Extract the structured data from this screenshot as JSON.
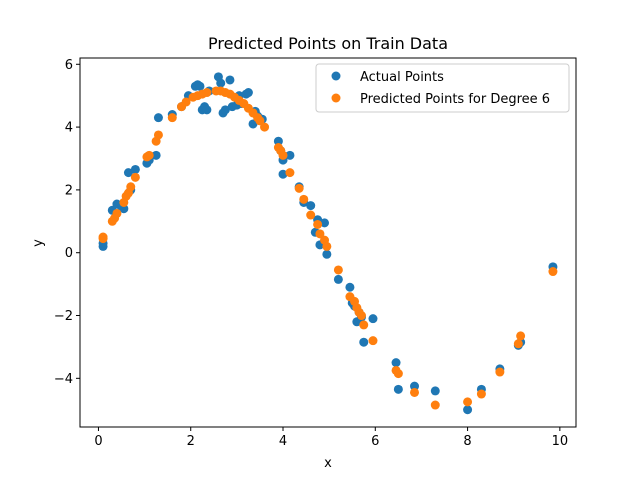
{
  "chart_data": {
    "type": "scatter",
    "title": "Predicted Points on Train Data",
    "xlabel": "x",
    "ylabel": "y",
    "xlim": [
      -0.4,
      10.35
    ],
    "ylim": [
      -5.55,
      6.2
    ],
    "xticks": [
      0,
      2,
      4,
      6,
      8,
      10
    ],
    "yticks": [
      -4,
      -2,
      0,
      2,
      4,
      6
    ],
    "xtick_labels": [
      "0",
      "2",
      "4",
      "6",
      "8",
      "10"
    ],
    "ytick_labels": [
      "−4",
      "−2",
      "0",
      "2",
      "4",
      "6"
    ],
    "grid": false,
    "legend_position": "top-right",
    "series": [
      {
        "name": "Actual Points",
        "color": "#1f77b4",
        "points": [
          [
            0.1,
            0.2
          ],
          [
            0.1,
            0.3
          ],
          [
            0.3,
            1.35
          ],
          [
            0.4,
            1.55
          ],
          [
            0.5,
            1.45
          ],
          [
            0.55,
            1.4
          ],
          [
            0.65,
            2.55
          ],
          [
            0.7,
            2.0
          ],
          [
            0.8,
            2.65
          ],
          [
            1.05,
            2.85
          ],
          [
            1.1,
            2.95
          ],
          [
            1.25,
            3.1
          ],
          [
            1.3,
            4.3
          ],
          [
            1.6,
            4.4
          ],
          [
            1.8,
            4.65
          ],
          [
            1.95,
            5.0
          ],
          [
            2.1,
            5.3
          ],
          [
            2.15,
            5.35
          ],
          [
            2.2,
            5.3
          ],
          [
            2.25,
            4.55
          ],
          [
            2.3,
            4.65
          ],
          [
            2.35,
            4.55
          ],
          [
            2.4,
            5.15
          ],
          [
            2.6,
            5.6
          ],
          [
            2.65,
            5.4
          ],
          [
            2.7,
            4.45
          ],
          [
            2.75,
            4.55
          ],
          [
            2.85,
            5.5
          ],
          [
            2.9,
            4.65
          ],
          [
            3.0,
            4.7
          ],
          [
            3.05,
            5.0
          ],
          [
            3.1,
            4.75
          ],
          [
            3.2,
            5.05
          ],
          [
            3.25,
            5.1
          ],
          [
            3.35,
            4.1
          ],
          [
            3.4,
            4.5
          ],
          [
            3.45,
            4.35
          ],
          [
            3.55,
            4.25
          ],
          [
            3.9,
            3.55
          ],
          [
            3.95,
            3.25
          ],
          [
            4.0,
            2.95
          ],
          [
            4.0,
            2.5
          ],
          [
            4.15,
            3.1
          ],
          [
            4.35,
            2.1
          ],
          [
            4.45,
            1.6
          ],
          [
            4.6,
            1.5
          ],
          [
            4.7,
            0.65
          ],
          [
            4.75,
            1.05
          ],
          [
            4.8,
            0.25
          ],
          [
            4.9,
            0.95
          ],
          [
            4.95,
            -0.05
          ],
          [
            5.2,
            -0.85
          ],
          [
            5.45,
            -1.1
          ],
          [
            5.5,
            -1.6
          ],
          [
            5.55,
            -1.7
          ],
          [
            5.6,
            -2.2
          ],
          [
            5.65,
            -1.9
          ],
          [
            5.7,
            -2.05
          ],
          [
            5.75,
            -2.85
          ],
          [
            5.95,
            -2.1
          ],
          [
            6.45,
            -3.5
          ],
          [
            6.5,
            -4.35
          ],
          [
            6.85,
            -4.25
          ],
          [
            7.3,
            -4.4
          ],
          [
            8.0,
            -5.0
          ],
          [
            8.3,
            -4.35
          ],
          [
            8.7,
            -3.7
          ],
          [
            9.1,
            -2.95
          ],
          [
            9.15,
            -2.85
          ],
          [
            9.85,
            -0.45
          ]
        ]
      },
      {
        "name": "Predicted Points for Degree 6",
        "color": "#ff7f0e",
        "points": [
          [
            0.1,
            0.45
          ],
          [
            0.1,
            0.5
          ],
          [
            0.3,
            1.0
          ],
          [
            0.35,
            1.1
          ],
          [
            0.4,
            1.25
          ],
          [
            0.55,
            1.6
          ],
          [
            0.6,
            1.8
          ],
          [
            0.65,
            1.9
          ],
          [
            0.7,
            2.1
          ],
          [
            0.8,
            2.4
          ],
          [
            1.05,
            3.05
          ],
          [
            1.1,
            3.1
          ],
          [
            1.25,
            3.55
          ],
          [
            1.3,
            3.75
          ],
          [
            1.6,
            4.3
          ],
          [
            1.8,
            4.65
          ],
          [
            1.9,
            4.8
          ],
          [
            2.05,
            4.95
          ],
          [
            2.15,
            5.0
          ],
          [
            2.25,
            5.05
          ],
          [
            2.35,
            5.1
          ],
          [
            2.55,
            5.15
          ],
          [
            2.65,
            5.15
          ],
          [
            2.75,
            5.1
          ],
          [
            2.85,
            5.05
          ],
          [
            2.95,
            4.95
          ],
          [
            3.05,
            4.85
          ],
          [
            3.15,
            4.75
          ],
          [
            3.25,
            4.6
          ],
          [
            3.35,
            4.45
          ],
          [
            3.45,
            4.3
          ],
          [
            3.5,
            4.2
          ],
          [
            3.6,
            4.0
          ],
          [
            3.9,
            3.35
          ],
          [
            3.95,
            3.25
          ],
          [
            4.0,
            3.1
          ],
          [
            4.15,
            2.55
          ],
          [
            4.35,
            2.05
          ],
          [
            4.45,
            1.7
          ],
          [
            4.6,
            1.2
          ],
          [
            4.75,
            0.9
          ],
          [
            4.8,
            0.6
          ],
          [
            4.9,
            0.4
          ],
          [
            4.95,
            0.2
          ],
          [
            5.2,
            -0.55
          ],
          [
            5.45,
            -1.4
          ],
          [
            5.55,
            -1.55
          ],
          [
            5.6,
            -1.75
          ],
          [
            5.65,
            -1.9
          ],
          [
            5.7,
            -2.0
          ],
          [
            5.75,
            -2.3
          ],
          [
            5.95,
            -2.8
          ],
          [
            6.45,
            -3.75
          ],
          [
            6.5,
            -3.85
          ],
          [
            6.85,
            -4.45
          ],
          [
            7.3,
            -4.85
          ],
          [
            8.0,
            -4.75
          ],
          [
            8.3,
            -4.5
          ],
          [
            8.7,
            -3.8
          ],
          [
            9.1,
            -2.9
          ],
          [
            9.15,
            -2.65
          ],
          [
            9.85,
            -0.6
          ]
        ]
      }
    ]
  }
}
